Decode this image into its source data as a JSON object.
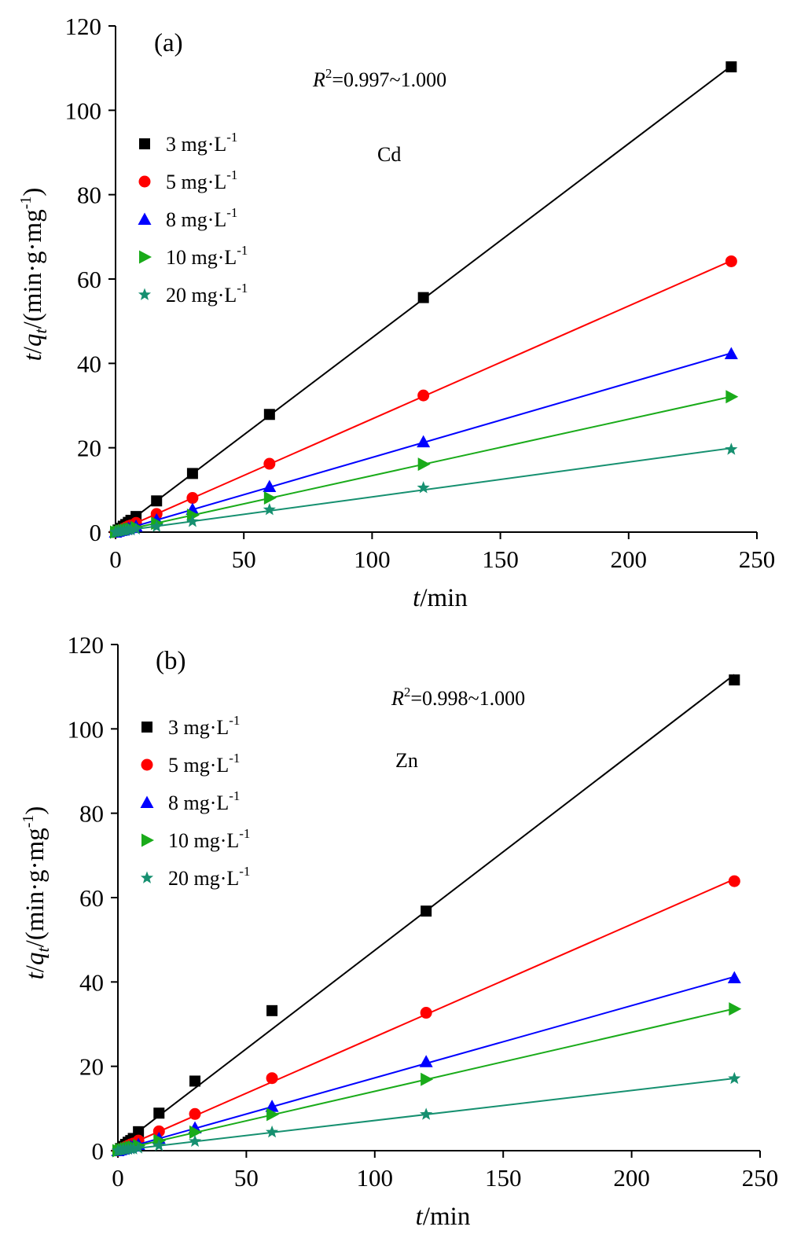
{
  "chart_data": [
    {
      "type": "scatter",
      "panel_label": "(a)",
      "metal_label": "Cd",
      "r2_symbol": "R",
      "r2_sup": "2",
      "r2_value": "=0.997~1.000",
      "xlabel": {
        "italic": "t",
        "rest": "/min"
      },
      "ylabel": {
        "p1": "t",
        "p2": "/",
        "p3": "q",
        "p4": "t",
        "p5": "/(min·g·mg",
        "p6": "-1",
        "p7": ")"
      },
      "xlim": [
        0,
        250
      ],
      "ylim": [
        0,
        120
      ],
      "xticks": [
        0,
        50,
        100,
        150,
        200,
        250
      ],
      "yticks": [
        0,
        20,
        40,
        60,
        80,
        100,
        120
      ],
      "grid": false,
      "legend_position": "upper-left",
      "x": [
        0,
        1,
        2,
        3,
        4,
        5,
        6,
        8,
        16,
        30,
        60,
        120,
        240
      ],
      "series": [
        {
          "name_main": "3 mg·L",
          "name_sup": "-1",
          "color": "#000000",
          "marker": "square",
          "values": [
            0,
            0.5,
            0.9,
            1.4,
            1.8,
            2.3,
            2.8,
            3.7,
            7.4,
            13.9,
            27.9,
            55.6,
            110.3
          ]
        },
        {
          "name_main": "5 mg·L",
          "name_sup": "-1",
          "color": "#ff0000",
          "marker": "circle",
          "values": [
            0,
            0.3,
            0.5,
            0.8,
            1.1,
            1.4,
            1.6,
            2.2,
            4.3,
            8.1,
            16.2,
            32.4,
            64.2
          ]
        },
        {
          "name_main": "8 mg·L",
          "name_sup": "-1",
          "color": "#0000ff",
          "marker": "triangle",
          "values": [
            0,
            0.2,
            0.4,
            0.5,
            0.7,
            0.9,
            1.1,
            1.4,
            2.9,
            5.4,
            10.8,
            21.4,
            42.3
          ]
        },
        {
          "name_main": "10 mg·L",
          "name_sup": "-1",
          "color": "#1aab1a",
          "marker": "triangle-right",
          "values": [
            0,
            0.1,
            0.3,
            0.4,
            0.5,
            0.7,
            0.8,
            1.1,
            2.1,
            4.0,
            8.1,
            16.1,
            32.1
          ]
        },
        {
          "name_main": "20 mg·L",
          "name_sup": "-1",
          "color": "#169070",
          "marker": "star",
          "values": [
            0,
            0.1,
            0.2,
            0.3,
            0.4,
            0.5,
            0.5,
            0.7,
            1.3,
            2.5,
            5.3,
            10.5,
            19.6
          ]
        }
      ]
    },
    {
      "type": "scatter",
      "panel_label": "(b)",
      "metal_label": "Zn",
      "r2_symbol": "R",
      "r2_sup": "2",
      "r2_value": "=0.998~1.000",
      "xlabel": {
        "italic": "t",
        "rest": "/min"
      },
      "ylabel": {
        "p1": "t",
        "p2": "/",
        "p3": "q",
        "p4": "t",
        "p5": "/(min·g·mg",
        "p6": "-1",
        "p7": ")"
      },
      "xlim": [
        0,
        250
      ],
      "ylim": [
        0,
        120
      ],
      "xticks": [
        0,
        50,
        100,
        150,
        200,
        250
      ],
      "yticks": [
        0,
        20,
        40,
        60,
        80,
        100,
        120
      ],
      "grid": false,
      "legend_position": "upper-left",
      "x": [
        0,
        1,
        2,
        3,
        4,
        5,
        6,
        8,
        16,
        30,
        60,
        120,
        240
      ],
      "series": [
        {
          "name_main": "3 mg·L",
          "name_sup": "-1",
          "color": "#000000",
          "marker": "square",
          "values": [
            0,
            0.5,
            1.0,
            1.5,
            2.0,
            2.4,
            2.9,
            4.5,
            8.9,
            16.5,
            33.2,
            56.8,
            111.6
          ]
        },
        {
          "name_main": "5 mg·L",
          "name_sup": "-1",
          "color": "#ff0000",
          "marker": "circle",
          "values": [
            0,
            0.3,
            0.6,
            0.9,
            1.2,
            1.5,
            1.7,
            2.4,
            4.6,
            8.7,
            17.2,
            32.7,
            63.9
          ]
        },
        {
          "name_main": "8 mg·L",
          "name_sup": "-1",
          "color": "#0000ff",
          "marker": "triangle",
          "values": [
            0,
            0.2,
            0.4,
            0.6,
            0.8,
            1.0,
            1.1,
            1.5,
            2.9,
            5.4,
            10.5,
            21.1,
            41.0
          ]
        },
        {
          "name_main": "10 mg·L",
          "name_sup": "-1",
          "color": "#1aab1a",
          "marker": "triangle-right",
          "values": [
            0,
            0.2,
            0.3,
            0.5,
            0.6,
            0.8,
            0.9,
            1.2,
            2.4,
            4.4,
            8.6,
            16.9,
            33.6
          ]
        },
        {
          "name_main": "20 mg·L",
          "name_sup": "-1",
          "color": "#169070",
          "marker": "star",
          "values": [
            0,
            0.1,
            0.2,
            0.2,
            0.3,
            0.4,
            0.4,
            0.6,
            1.2,
            2.2,
            4.4,
            8.6,
            17.1
          ]
        }
      ]
    }
  ]
}
